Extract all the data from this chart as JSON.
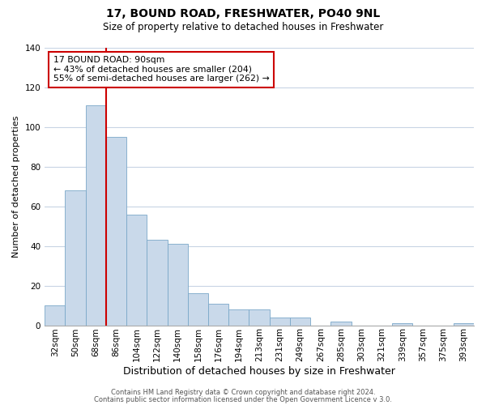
{
  "title": "17, BOUND ROAD, FRESHWATER, PO40 9NL",
  "subtitle": "Size of property relative to detached houses in Freshwater",
  "xlabel": "Distribution of detached houses by size in Freshwater",
  "ylabel": "Number of detached properties",
  "bar_labels": [
    "32sqm",
    "50sqm",
    "68sqm",
    "86sqm",
    "104sqm",
    "122sqm",
    "140sqm",
    "158sqm",
    "176sqm",
    "194sqm",
    "213sqm",
    "231sqm",
    "249sqm",
    "267sqm",
    "285sqm",
    "303sqm",
    "321sqm",
    "339sqm",
    "357sqm",
    "375sqm",
    "393sqm"
  ],
  "bar_values": [
    10,
    68,
    111,
    95,
    56,
    43,
    41,
    16,
    11,
    8,
    8,
    4,
    4,
    0,
    2,
    0,
    0,
    1,
    0,
    0,
    1
  ],
  "bar_color": "#c9d9ea",
  "bar_edgecolor": "#7aa8c8",
  "vline_x_index": 2.5,
  "vline_color": "#cc0000",
  "annotation_title": "17 BOUND ROAD: 90sqm",
  "annotation_line1": "← 43% of detached houses are smaller (204)",
  "annotation_line2": "55% of semi-detached houses are larger (262) →",
  "annotation_box_edgecolor": "#cc0000",
  "annotation_box_facecolor": "#ffffff",
  "ylim": [
    0,
    140
  ],
  "yticks": [
    0,
    20,
    40,
    60,
    80,
    100,
    120,
    140
  ],
  "footer1": "Contains HM Land Registry data © Crown copyright and database right 2024.",
  "footer2": "Contains public sector information licensed under the Open Government Licence v 3.0.",
  "bg_color": "#ffffff",
  "grid_color": "#c8d4e4",
  "title_fontsize": 10,
  "subtitle_fontsize": 8.5,
  "xlabel_fontsize": 9,
  "ylabel_fontsize": 8,
  "tick_fontsize": 7.5,
  "footer_fontsize": 6,
  "footer_color": "#555555"
}
